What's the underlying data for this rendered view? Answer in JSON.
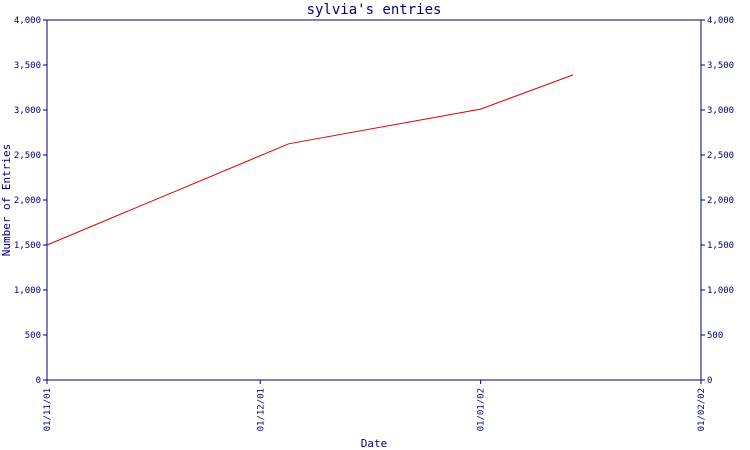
{
  "chart_data": {
    "type": "line",
    "title": "sylvia's entries",
    "xlabel": "Date",
    "ylabel": "Number of Entries",
    "x_ticks": [
      "01/11/01",
      "01/12/01",
      "01/01/02",
      "01/02/02"
    ],
    "y_ticks_left": [
      "0",
      "500",
      "1,000",
      "1,500",
      "2,000",
      "2,500",
      "3,000",
      "3,500",
      "4,000"
    ],
    "y_ticks_right": [
      "0",
      "500",
      "1,000",
      "1,500",
      "2,000",
      "2,500",
      "3,000",
      "3,500",
      "4,000"
    ],
    "ylim": [
      0,
      4000
    ],
    "xlim": [
      "2001-11-01",
      "2002-02-01"
    ],
    "series": [
      {
        "color": "#dd0000",
        "points": [
          {
            "x": "2001-11-01",
            "y": 1500
          },
          {
            "x": "2001-12-05",
            "y": 2625
          },
          {
            "x": "2002-01-01",
            "y": 3010
          },
          {
            "x": "2002-01-14",
            "y": 3390
          }
        ]
      }
    ],
    "grid": false,
    "axis_color": "#00007a"
  }
}
